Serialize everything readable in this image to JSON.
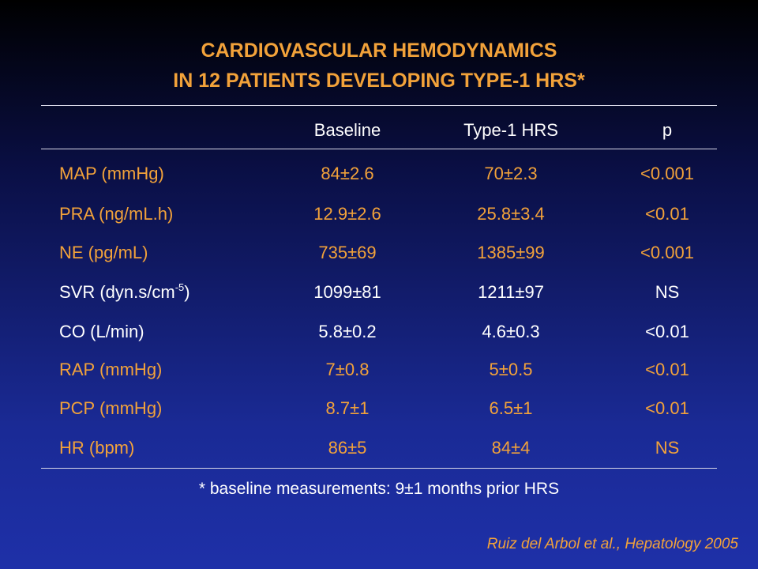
{
  "title": {
    "lines": [
      "CARDIOVASCULAR HEMODYNAMICS",
      "IN 12 PATIENTS DEVELOPING TYPE-1 HRS*"
    ]
  },
  "table": {
    "header": [
      "Baseline",
      "Type-1 HRS",
      "p"
    ],
    "rows": [
      {
        "label": [
          "MAP (mmHg)"
        ],
        "cells": [
          "84±2.6",
          "70±2.3",
          "<0.001"
        ],
        "color": "#f2a23a"
      },
      {
        "label": [
          "PRA (ng/mL.h)"
        ],
        "cells": [
          "12.9±2.6",
          "25.8±3.4",
          "<0.01"
        ],
        "color": "#f2a23a"
      },
      {
        "label": [
          "NE (pg/mL)"
        ],
        "cells": [
          "735±69",
          "1385±99",
          "<0.001"
        ],
        "color": "#f2a23a"
      },
      {
        "label": [
          "SVR (dyn.s/cm",
          "-5",
          ")"
        ],
        "cells": [
          "1099±81",
          "1211±97",
          "NS"
        ],
        "color": "#ffffff"
      },
      {
        "label": [
          "CO (L/min)"
        ],
        "cells": [
          "5.8±0.2",
          "4.6±0.3",
          "<0.01"
        ],
        "color": "#ffffff"
      },
      {
        "label": [
          "RAP (mmHg)"
        ],
        "cells": [
          "7±0.8",
          "5±0.5",
          "<0.01"
        ],
        "color": "#f2a23a"
      },
      {
        "label": [
          "PCP (mmHg)"
        ],
        "cells": [
          "8.7±1",
          "6.5±1",
          "<0.01"
        ],
        "color": "#f2a23a"
      },
      {
        "label": [
          "HR (bpm)"
        ],
        "cells": [
          "86±5",
          "84±4",
          "NS"
        ],
        "color": "#f2a23a"
      }
    ]
  },
  "footnote": "* baseline measurements: 9±1 months prior HRS",
  "citation": "Ruiz del Arbol et al., Hepatology 2005"
}
